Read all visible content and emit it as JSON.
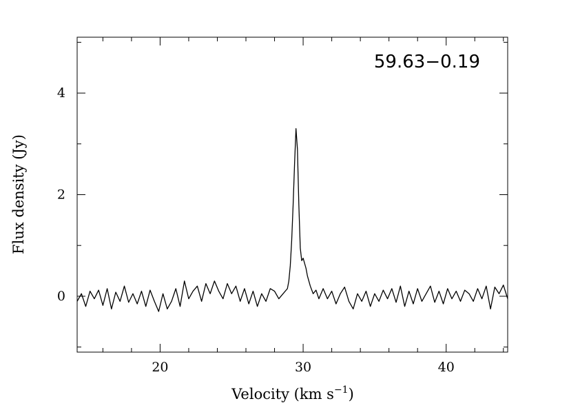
{
  "chart_data": {
    "type": "line",
    "title": "",
    "annotation": "59.63−0.19",
    "xlabel": "Velocity (km s",
    "xlabel_superscript": "−1",
    "xlabel_close": ")",
    "ylabel": "Flux density (Jy)",
    "xlim": [
      14.2,
      44.3
    ],
    "ylim": [
      -1.1,
      5.1
    ],
    "x_ticks": [
      20,
      30,
      40
    ],
    "x_tick_labels": [
      "20",
      "30",
      "40"
    ],
    "x_minor_step": 2,
    "y_ticks": [
      0,
      2,
      4
    ],
    "y_tick_labels": [
      "0",
      "2",
      "4"
    ],
    "y_minor_step": 1,
    "grid": false,
    "series": [
      {
        "x": [
          14.2,
          14.5,
          14.8,
          15.1,
          15.4,
          15.7,
          16.0,
          16.3,
          16.6,
          16.9,
          17.2,
          17.5,
          17.8,
          18.1,
          18.4,
          18.7,
          19.0,
          19.3,
          19.6,
          19.9,
          20.2,
          20.5,
          20.8,
          21.1,
          21.4,
          21.7,
          22.0,
          22.3,
          22.6,
          22.9,
          23.2,
          23.5,
          23.8,
          24.1,
          24.4,
          24.7,
          25.0,
          25.3,
          25.6,
          25.9,
          26.2,
          26.5,
          26.8,
          27.1,
          27.4,
          27.7,
          28.0,
          28.3,
          28.6,
          28.9,
          29.0,
          29.1,
          29.2,
          29.3,
          29.4,
          29.5,
          29.6,
          29.7,
          29.8,
          29.9,
          30.0,
          30.1,
          30.2,
          30.3,
          30.5,
          30.7,
          30.9,
          31.1,
          31.4,
          31.7,
          32.0,
          32.3,
          32.6,
          32.9,
          33.2,
          33.5,
          33.8,
          34.1,
          34.4,
          34.7,
          35.0,
          35.3,
          35.6,
          35.9,
          36.2,
          36.5,
          36.8,
          37.1,
          37.4,
          37.7,
          38.0,
          38.3,
          38.6,
          38.9,
          39.2,
          39.5,
          39.8,
          40.1,
          40.4,
          40.7,
          41.0,
          41.3,
          41.6,
          41.9,
          42.2,
          42.5,
          42.8,
          43.1,
          43.4,
          43.7,
          44.0,
          44.3
        ],
        "y": [
          -0.1,
          0.05,
          -0.2,
          0.1,
          -0.05,
          0.12,
          -0.18,
          0.15,
          -0.25,
          0.08,
          -0.1,
          0.2,
          -0.12,
          0.05,
          -0.15,
          0.1,
          -0.2,
          0.12,
          -0.1,
          -0.3,
          0.05,
          -0.25,
          -0.1,
          0.15,
          -0.2,
          0.3,
          -0.05,
          0.1,
          0.2,
          -0.1,
          0.25,
          0.05,
          0.3,
          0.1,
          -0.05,
          0.25,
          0.05,
          0.2,
          -0.1,
          0.15,
          -0.15,
          0.1,
          -0.2,
          0.05,
          -0.1,
          0.15,
          0.1,
          -0.05,
          0.05,
          0.15,
          0.3,
          0.6,
          1.1,
          1.8,
          2.6,
          3.3,
          2.9,
          1.8,
          0.95,
          0.7,
          0.75,
          0.65,
          0.55,
          0.4,
          0.2,
          0.05,
          0.12,
          -0.05,
          0.15,
          -0.05,
          0.1,
          -0.15,
          0.05,
          0.18,
          -0.1,
          -0.25,
          0.05,
          -0.1,
          0.1,
          -0.2,
          0.05,
          -0.1,
          0.12,
          -0.05,
          0.15,
          -0.12,
          0.2,
          -0.2,
          0.1,
          -0.15,
          0.15,
          -0.1,
          0.05,
          0.2,
          -0.12,
          0.1,
          -0.15,
          0.15,
          -0.05,
          0.1,
          -0.1,
          0.12,
          0.05,
          -0.1,
          0.15,
          -0.05,
          0.2,
          -0.25,
          0.18,
          0.05,
          0.22,
          -0.05
        ]
      }
    ]
  }
}
